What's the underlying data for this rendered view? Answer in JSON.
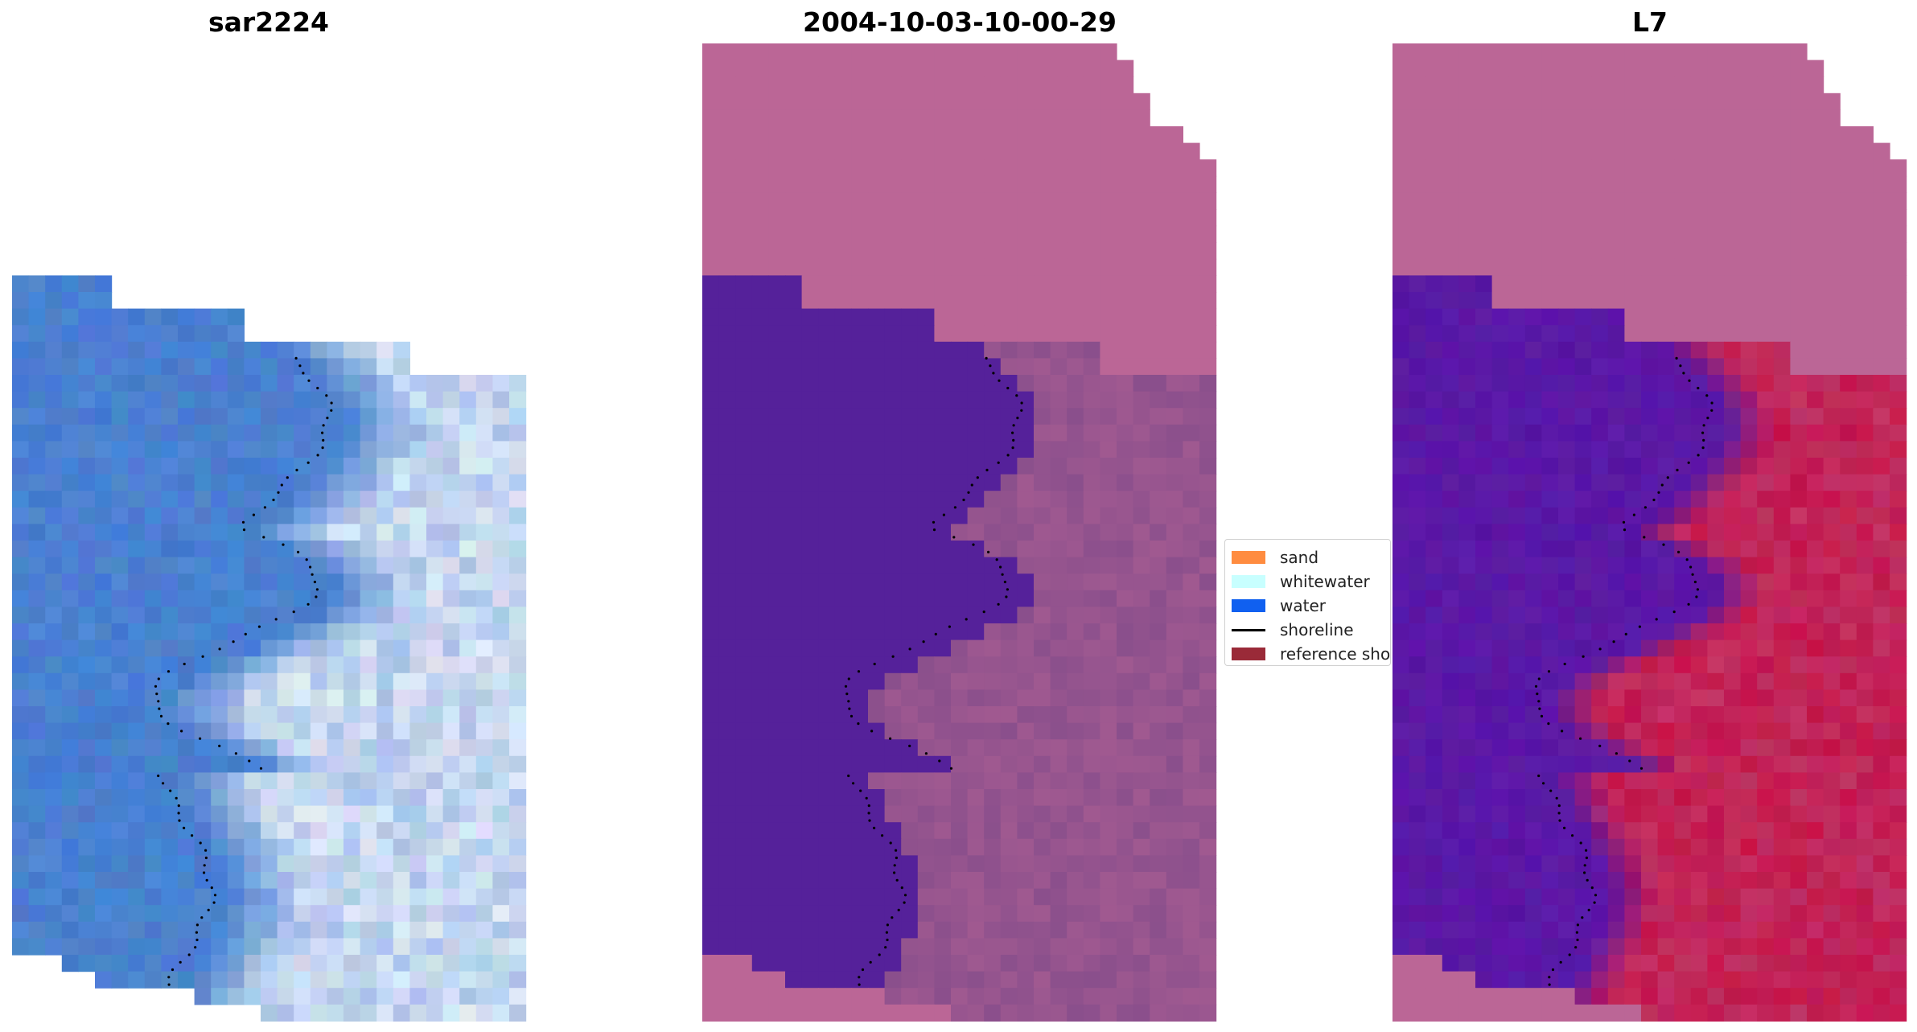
{
  "titles": {
    "left": "sar2224",
    "middle": "2004-10-03-10-00-29",
    "right": "L7"
  },
  "legend": {
    "items": [
      {
        "label": "sand",
        "color": "#ff8c40",
        "kind": "patch"
      },
      {
        "label": "whitewater",
        "color": "#c8ffff",
        "kind": "patch"
      },
      {
        "label": "water",
        "color": "#1060f0",
        "kind": "patch"
      },
      {
        "label": "shoreline",
        "color": "#000000",
        "kind": "line"
      },
      {
        "label": "reference shoreline",
        "color": "#9a2a38",
        "kind": "patch"
      }
    ]
  },
  "colors": {
    "rgb_water": "#4a80d0",
    "rgb_surf": "#dde8f5",
    "class_background": "#bb6696",
    "class_water": "#55219a",
    "class_land": "#8a4f8c",
    "mndwi_water": "#5a18a6",
    "mndwi_land": "#c4154a",
    "shoreline_dots": "#000000"
  }
}
